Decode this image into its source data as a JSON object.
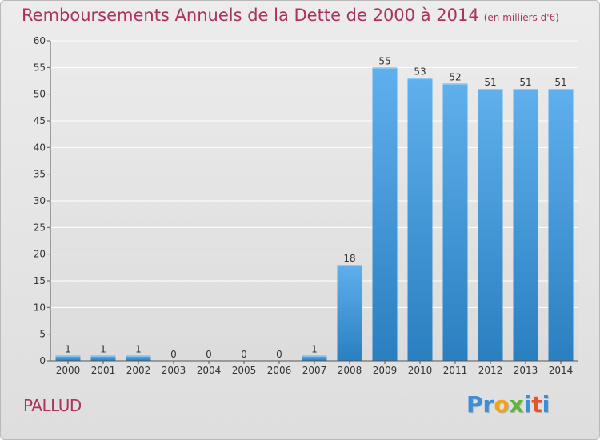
{
  "title": "Remboursements Annuels de la Dette de 2000 à 2014",
  "subtitle": "(en milliers d'€)",
  "commune": "PALLUD",
  "logo": {
    "text": "Proxiti",
    "letters": [
      {
        "ch": "P",
        "color": "#3a8fd6"
      },
      {
        "ch": "r",
        "color": "#3a8fd6"
      },
      {
        "ch": "o",
        "color": "#f1a21c"
      },
      {
        "ch": "x",
        "color": "#5fb43a"
      },
      {
        "ch": "i",
        "color": "#3a8fd6"
      },
      {
        "ch": "t",
        "color": "#e1552f"
      },
      {
        "ch": "i",
        "color": "#3a8fd6"
      }
    ]
  },
  "colors": {
    "title": "#b0305e",
    "bar_light": "#5fb0ec",
    "bar_dark": "#2a7fc0",
    "axis": "#555555",
    "grid": "#ffffff"
  },
  "chart_data": {
    "type": "bar",
    "categories": [
      "2000",
      "2001",
      "2002",
      "2003",
      "2004",
      "2005",
      "2006",
      "2007",
      "2008",
      "2009",
      "2010",
      "2011",
      "2012",
      "2013",
      "2014"
    ],
    "values": [
      1,
      1,
      1,
      0,
      0,
      0,
      0,
      1,
      18,
      55,
      53,
      52,
      51,
      51,
      51
    ],
    "data_labels": [
      "1",
      "1",
      "1",
      "0",
      "0",
      "0",
      "0",
      "1",
      "18",
      "55",
      "53",
      "52",
      "51",
      "51",
      "51"
    ],
    "ylim": [
      0,
      60
    ],
    "yticks": [
      0,
      5,
      10,
      15,
      20,
      25,
      30,
      35,
      40,
      45,
      50,
      55,
      60
    ],
    "grid": true,
    "xlabel": "",
    "ylabel": ""
  }
}
